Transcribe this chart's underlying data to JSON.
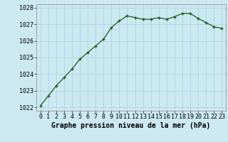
{
  "x": [
    0,
    1,
    2,
    3,
    4,
    5,
    6,
    7,
    8,
    9,
    10,
    11,
    12,
    13,
    14,
    15,
    16,
    17,
    18,
    19,
    20,
    21,
    22,
    23
  ],
  "y": [
    1022.1,
    1022.7,
    1023.3,
    1023.8,
    1024.3,
    1024.9,
    1025.3,
    1025.7,
    1026.1,
    1026.8,
    1027.2,
    1027.5,
    1027.4,
    1027.3,
    1027.3,
    1027.4,
    1027.3,
    1027.45,
    1027.65,
    1027.65,
    1027.35,
    1027.1,
    1026.85,
    1026.75
  ],
  "ylim": [
    1021.8,
    1028.2
  ],
  "yticks": [
    1022,
    1023,
    1024,
    1025,
    1026,
    1027,
    1028
  ],
  "xticks": [
    0,
    1,
    2,
    3,
    4,
    5,
    6,
    7,
    8,
    9,
    10,
    11,
    12,
    13,
    14,
    15,
    16,
    17,
    18,
    19,
    20,
    21,
    22,
    23
  ],
  "xlabel": "Graphe pression niveau de la mer (hPa)",
  "line_color": "#1a5c1a",
  "marker": "+",
  "marker_color": "#1a5c1a",
  "bg_color": "#cce8f0",
  "grid_color": "#b0d8e8",
  "tick_label_fontsize": 6.0,
  "xlabel_fontsize": 7.0,
  "marker_size": 3.5,
  "line_width": 0.9
}
